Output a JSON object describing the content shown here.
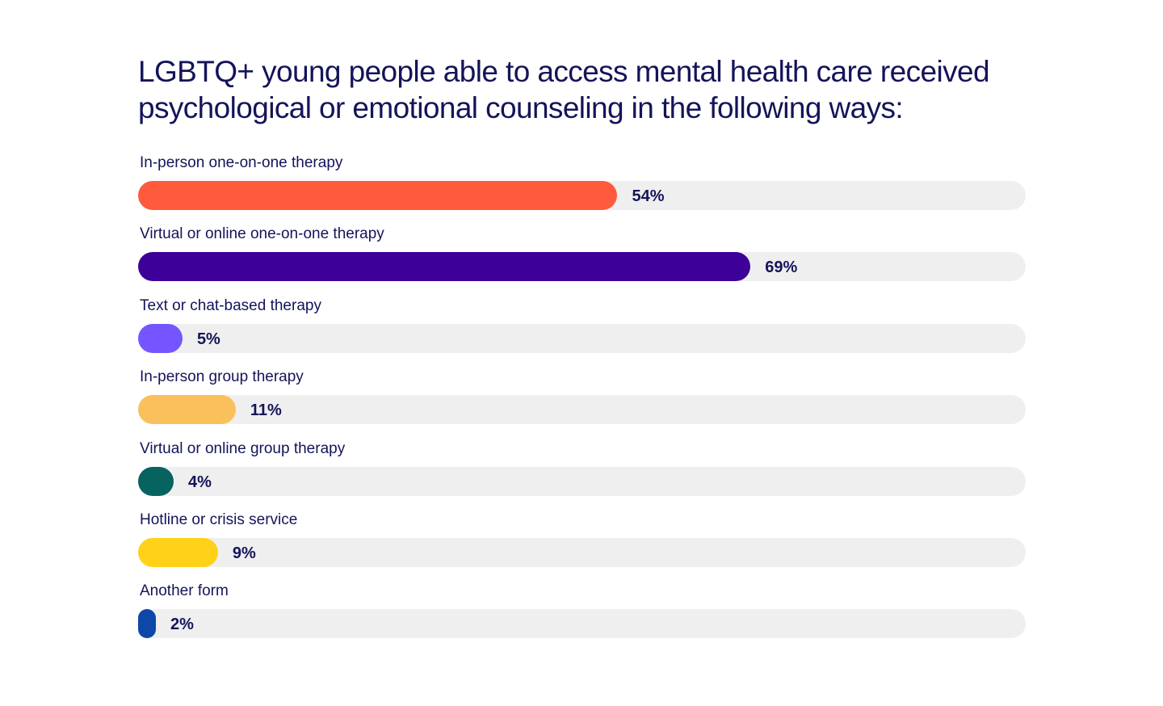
{
  "chart_data": {
    "type": "bar",
    "orientation": "horizontal",
    "title": "LGBTQ+ young people able to access mental health care received psychological or emotional counseling in the following ways:",
    "categories": [
      "In-person one-on-one therapy",
      "Virtual or online one-on-one therapy",
      "Text or chat-based therapy",
      "In-person group therapy",
      "Virtual or online group therapy",
      "Hotline or crisis service",
      "Another form"
    ],
    "values": [
      54,
      69,
      5,
      11,
      4,
      9,
      2
    ],
    "value_labels": [
      "54%",
      "69%",
      "5%",
      "11%",
      "4%",
      "9%",
      "2%"
    ],
    "colors": [
      "#ff5a3c",
      "#3d0099",
      "#7455ff",
      "#f9c05c",
      "#07635f",
      "#ffd219",
      "#0d47a8"
    ],
    "track_color": "#efefef",
    "xlim": [
      0,
      100
    ],
    "grid": false,
    "legend": "none"
  }
}
